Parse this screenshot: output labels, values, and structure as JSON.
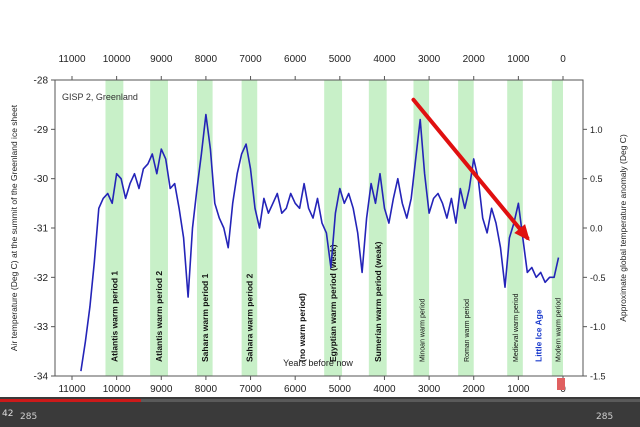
{
  "chart_data": {
    "type": "line",
    "title": "GISP 2, Greenland",
    "xlabel": "Years before now",
    "ylabel": "Air temperature (Deg C) at the summit of the Greenland ice sheet",
    "y2label": "Approximate global temperature anomaly (Deg C)",
    "xlim": [
      11000,
      0
    ],
    "ylim": [
      -34,
      -28
    ],
    "y2lim": [
      -1.5,
      1.5
    ],
    "x_ticks": [
      "11000",
      "10000",
      "9000",
      "8000",
      "7000",
      "6000",
      "5000",
      "4000",
      "3000",
      "2000",
      "1000",
      "0"
    ],
    "x_tick_values": [
      11000,
      10000,
      9000,
      8000,
      7000,
      6000,
      5000,
      4000,
      3000,
      2000,
      1000,
      0
    ],
    "y_ticks": [
      "-28",
      "-29",
      "-30",
      "-31",
      "-32",
      "-33",
      "-34"
    ],
    "y_tick_values": [
      -28,
      -29,
      -30,
      -31,
      -32,
      -33,
      -34
    ],
    "y2_ticks": [
      "1.0",
      "0.5",
      "0.0",
      "-0.5",
      "-1.0",
      "-1.5"
    ],
    "y2_tick_values": [
      1.0,
      0.5,
      0.0,
      -0.5,
      -1.0,
      -1.5
    ],
    "grid": false,
    "line_color": "#2424b8",
    "band_color": "#c8f0c8",
    "arrow_color": "#e01010",
    "series": [
      {
        "x": [
          10800,
          10700,
          10600,
          10500,
          10400,
          10300,
          10200,
          10100,
          10000,
          9900,
          9800,
          9700,
          9600,
          9500,
          9400,
          9300,
          9200,
          9100,
          9000,
          8900,
          8800,
          8700,
          8600,
          8500,
          8400,
          8300,
          8200,
          8100,
          8000,
          7900,
          7800,
          7700,
          7600,
          7500,
          7400,
          7300,
          7200,
          7100,
          7000,
          6900,
          6800,
          6700,
          6600,
          6500,
          6400,
          6300,
          6200,
          6100,
          6000,
          5900,
          5800,
          5700,
          5600,
          5500,
          5400,
          5300,
          5200,
          5100,
          5000,
          4900,
          4800,
          4700,
          4600,
          4500,
          4400,
          4300,
          4200,
          4100,
          4000,
          3900,
          3800,
          3700,
          3600,
          3500,
          3400,
          3300,
          3200,
          3100,
          3000,
          2900,
          2800,
          2700,
          2600,
          2500,
          2400,
          2300,
          2200,
          2100,
          2000,
          1900,
          1800,
          1700,
          1600,
          1500,
          1400,
          1300,
          1200,
          1100,
          1000,
          900,
          800,
          700,
          600,
          500,
          400,
          300,
          200,
          100
        ],
        "y": [
          -33.9,
          -33.3,
          -32.6,
          -31.7,
          -30.6,
          -30.4,
          -30.3,
          -30.5,
          -29.9,
          -30.0,
          -30.4,
          -30.1,
          -29.9,
          -30.2,
          -29.8,
          -29.7,
          -29.5,
          -29.9,
          -29.4,
          -29.6,
          -30.2,
          -30.1,
          -30.6,
          -31.2,
          -32.4,
          -31.0,
          -30.2,
          -29.5,
          -28.7,
          -29.4,
          -30.5,
          -30.8,
          -31.0,
          -31.4,
          -30.5,
          -29.9,
          -29.5,
          -29.3,
          -29.8,
          -30.6,
          -31.0,
          -30.4,
          -30.7,
          -30.5,
          -30.3,
          -30.7,
          -30.6,
          -30.3,
          -30.5,
          -30.6,
          -30.1,
          -30.6,
          -30.8,
          -30.4,
          -30.9,
          -31.1,
          -31.8,
          -30.7,
          -30.2,
          -30.5,
          -30.3,
          -30.6,
          -31.1,
          -31.9,
          -30.8,
          -30.1,
          -30.5,
          -29.9,
          -30.6,
          -30.9,
          -30.4,
          -30.0,
          -30.5,
          -30.8,
          -30.4,
          -29.6,
          -28.8,
          -29.9,
          -30.7,
          -30.4,
          -30.3,
          -30.5,
          -30.8,
          -30.4,
          -30.9,
          -30.2,
          -30.6,
          -30.2,
          -29.6,
          -30.0,
          -30.8,
          -31.1,
          -30.6,
          -30.9,
          -31.4,
          -32.2,
          -31.2,
          -30.9,
          -30.5,
          -31.2,
          -31.9,
          -31.8,
          -32.0,
          -31.9,
          -32.1,
          -32.0,
          -32.0,
          -31.6
        ]
      }
    ],
    "bands": [
      {
        "label": "Atlantis warm period 1",
        "from": 10250,
        "to": 9850
      },
      {
        "label": "Atlantis warm period 2",
        "from": 9250,
        "to": 8850
      },
      {
        "label": "Sahara warm period 1",
        "from": 8200,
        "to": 7850
      },
      {
        "label": "Sahara warm period 2",
        "from": 7200,
        "to": 6850
      },
      {
        "label": "(no warm period)",
        "from": null,
        "to": null,
        "x": 5850
      },
      {
        "label": "Egyptian warm period (weak)",
        "from": 5350,
        "to": 4950
      },
      {
        "label": "Sumerian warm period (weak)",
        "from": 4350,
        "to": 3950
      },
      {
        "label": "Minoan warm period",
        "from": 3350,
        "to": 3000
      },
      {
        "label": "Roman warm period",
        "from": 2350,
        "to": 2000
      },
      {
        "label": "Medieval warm period",
        "from": 1250,
        "to": 900
      },
      {
        "label": "Little Ice Age",
        "from": null,
        "to": null,
        "x": 550
      },
      {
        "label": "Modern warm period",
        "from": 250,
        "to": 0
      }
    ],
    "arrow": {
      "from": [
        3350,
        -28.4
      ],
      "to": [
        800,
        -31.2
      ]
    }
  },
  "video": {
    "time": "42",
    "left_label": "285",
    "right_label": "285",
    "progress": 0.22
  }
}
